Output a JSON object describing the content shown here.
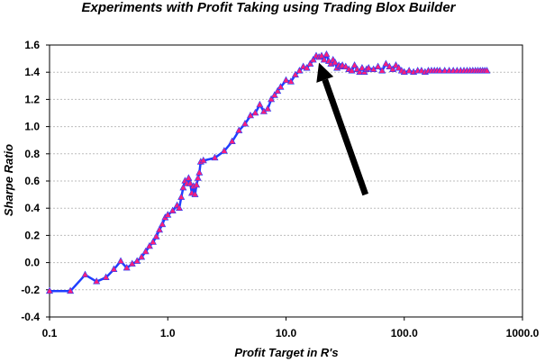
{
  "chart_data": {
    "type": "line",
    "title": "Experiments with Profit Taking using Trading Blox Builder",
    "xlabel": "Profit Target in R's",
    "ylabel": "Sharpe Ratio",
    "x_scale": "log",
    "xlim": [
      0.1,
      1000
    ],
    "ylim": [
      -0.4,
      1.6
    ],
    "x_ticks": [
      "0.1",
      "1.0",
      "10.0",
      "100.0",
      "1000.0"
    ],
    "x_tick_values": [
      0.1,
      1,
      10,
      100,
      1000
    ],
    "y_ticks": [
      "-0.4",
      "-0.2",
      "0.0",
      "0.2",
      "0.4",
      "0.6",
      "0.8",
      "1.0",
      "1.2",
      "1.4",
      "1.6"
    ],
    "y_tick_values": [
      -0.4,
      -0.2,
      0.0,
      0.2,
      0.4,
      0.6,
      0.8,
      1.0,
      1.2,
      1.4,
      1.6
    ],
    "grid": "horizontal",
    "line_color": "#1f3fff",
    "marker_color": "#ff1f7a",
    "series": [
      {
        "x": [
          0.1,
          0.15,
          0.2,
          0.25,
          0.3,
          0.35,
          0.4,
          0.45,
          0.5,
          0.55,
          0.6,
          0.65,
          0.7,
          0.75,
          0.8,
          0.85,
          0.9,
          0.95,
          1.0,
          1.1,
          1.2,
          1.25,
          1.3,
          1.35,
          1.4,
          1.45,
          1.5,
          1.55,
          1.6,
          1.65,
          1.7,
          1.75,
          1.8,
          1.85,
          1.9,
          2.0,
          2.5,
          3.0,
          3.5,
          4.0,
          4.5,
          5.0,
          5.5,
          6.0,
          6.5,
          7.0,
          7.5,
          8.0,
          8.5,
          9.0,
          10,
          11,
          12,
          13,
          14,
          15,
          16,
          17,
          18,
          19,
          20,
          21,
          22,
          23,
          24,
          25,
          26,
          27,
          28,
          29,
          30,
          32,
          34,
          36,
          38,
          40,
          42,
          44,
          46,
          48,
          50,
          55,
          60,
          65,
          70,
          75,
          80,
          85,
          90,
          95,
          100,
          110,
          120,
          130,
          140,
          150,
          160,
          170,
          180,
          190,
          200,
          220,
          240,
          260,
          280,
          300,
          320,
          340,
          360,
          380,
          400,
          420,
          440,
          460,
          480,
          500
        ],
        "y": [
          -0.21,
          -0.21,
          -0.09,
          -0.14,
          -0.11,
          -0.05,
          0.01,
          -0.04,
          -0.01,
          0.01,
          0.04,
          0.08,
          0.12,
          0.15,
          0.19,
          0.24,
          0.28,
          0.33,
          0.35,
          0.38,
          0.42,
          0.4,
          0.48,
          0.55,
          0.6,
          0.58,
          0.62,
          0.58,
          0.51,
          0.56,
          0.5,
          0.57,
          0.62,
          0.66,
          0.74,
          0.75,
          0.77,
          0.82,
          0.89,
          0.97,
          1.02,
          1.08,
          1.1,
          1.16,
          1.11,
          1.13,
          1.2,
          1.23,
          1.26,
          1.29,
          1.34,
          1.33,
          1.38,
          1.41,
          1.44,
          1.43,
          1.46,
          1.49,
          1.52,
          1.51,
          1.52,
          1.49,
          1.53,
          1.48,
          1.46,
          1.49,
          1.47,
          1.43,
          1.45,
          1.44,
          1.45,
          1.44,
          1.42,
          1.41,
          1.45,
          1.42,
          1.4,
          1.43,
          1.4,
          1.42,
          1.43,
          1.42,
          1.44,
          1.41,
          1.46,
          1.44,
          1.42,
          1.45,
          1.43,
          1.41,
          1.4,
          1.41,
          1.4,
          1.41,
          1.41,
          1.4,
          1.41,
          1.41,
          1.41,
          1.41,
          1.41,
          1.41,
          1.41,
          1.41,
          1.41,
          1.41,
          1.41,
          1.41,
          1.41,
          1.41,
          1.41,
          1.41,
          1.41,
          1.41,
          1.41,
          1.41
        ]
      }
    ],
    "annotations": [
      {
        "type": "arrow",
        "color": "#000000",
        "from": [
          47,
          0.5
        ],
        "to": [
          19,
          1.47
        ]
      }
    ]
  }
}
